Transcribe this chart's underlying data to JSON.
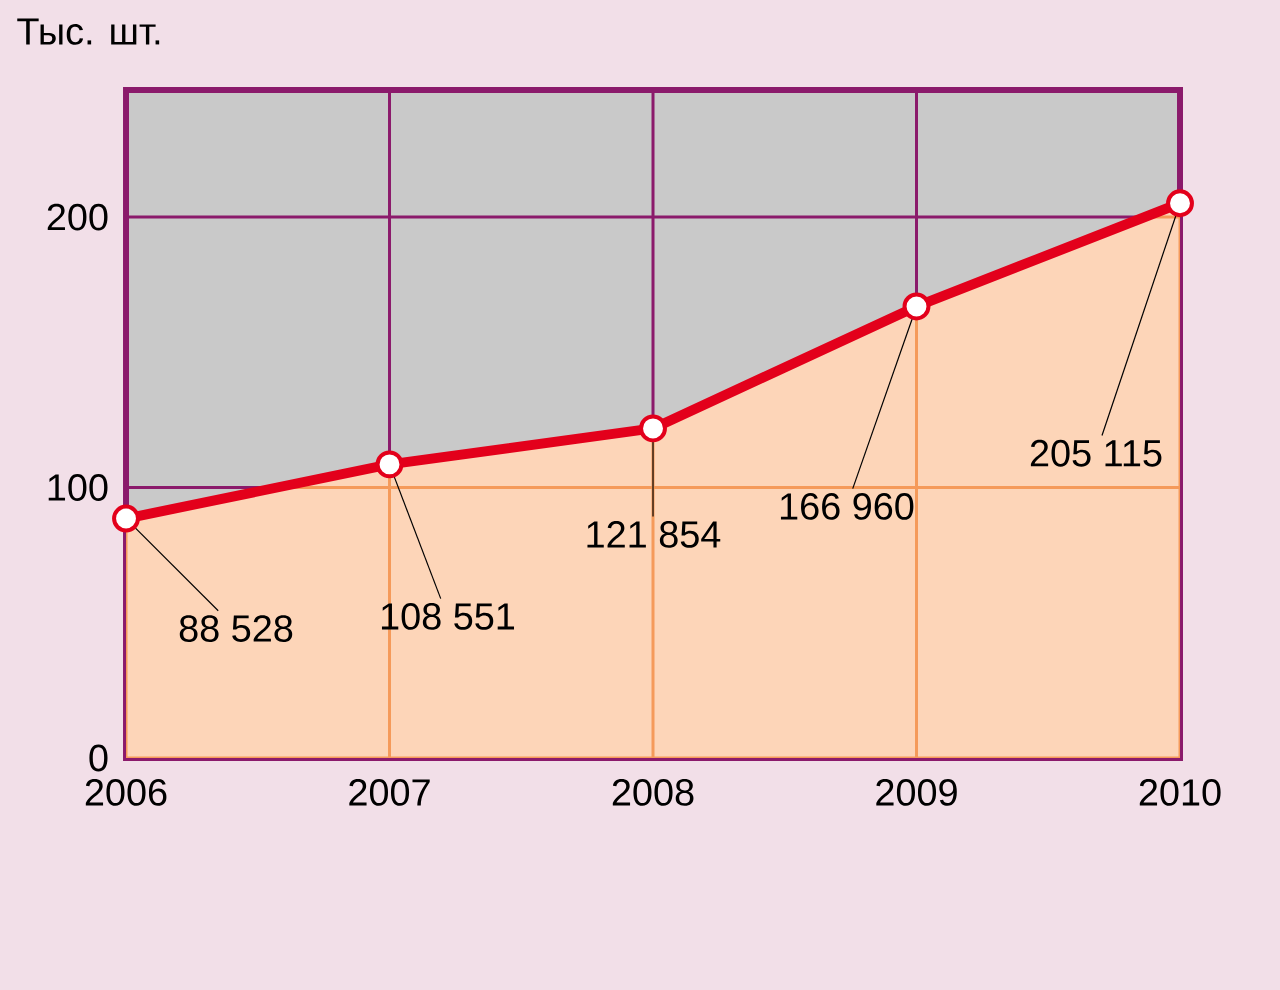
{
  "chart_data": {
    "type": "area",
    "ylabel": "Тыс. шт.",
    "x": [
      2006,
      2007,
      2008,
      2009,
      2010
    ],
    "values": [
      88.528,
      108.551,
      121.854,
      166.96,
      205.115
    ],
    "annotations": [
      {
        "text": "88 528",
        "x": 2006,
        "y": 88.528
      },
      {
        "text": "108 551",
        "x": 2007,
        "y": 108.551
      },
      {
        "text": "121 854",
        "x": 2008,
        "y": 121.854
      },
      {
        "text": "166 960",
        "x": 2009,
        "y": 166.96
      },
      {
        "text": "205 115",
        "x": 2010,
        "y": 205.115
      }
    ],
    "color": "#e3001b",
    "marker": "circle",
    "line_style": "solid",
    "xlim": [
      2006,
      2010
    ],
    "ylim": [
      0,
      247
    ],
    "xticks": [
      2006,
      2007,
      2008,
      2009,
      2010
    ],
    "yticks": [
      0,
      100,
      200
    ],
    "grid": true
  }
}
